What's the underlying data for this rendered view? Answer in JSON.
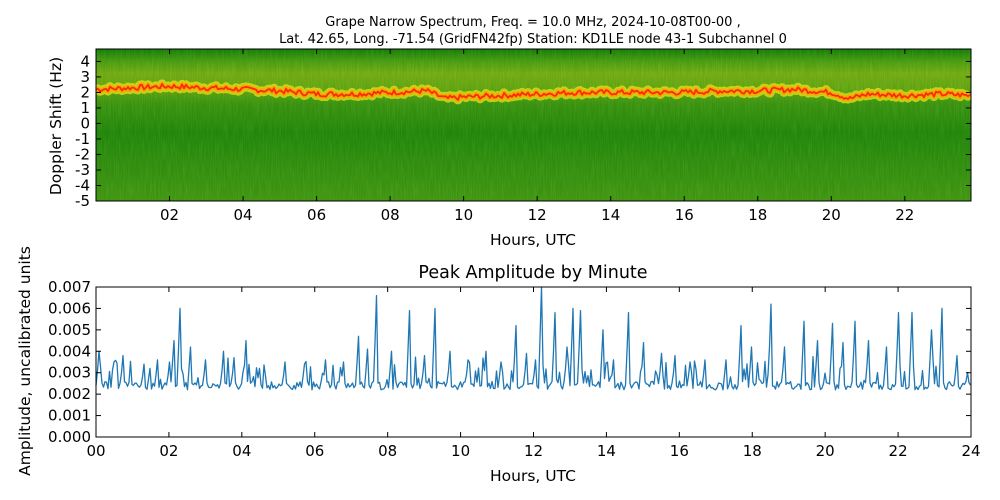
{
  "figure": {
    "title_line1": "Grape Narrow Spectrum, Freq. = 10.0 MHz, 2024-10-08T00-00 ,",
    "title_line2": "Lat.  42.65, Long. -71.54 (GridFN42fp) Station: KD1LE node 43-1 Subchannel 0"
  },
  "colors": {
    "background": "#ffffff",
    "spectrum_low": "#0e7d07",
    "spectrum_mid": "#7ec21a",
    "spectrum_high": "#e8e21c",
    "spectrum_peak": "#ff2a00",
    "amplitude_line": "#1f77b4",
    "axes": "#000000"
  },
  "chart_data": [
    {
      "type": "heatmap",
      "title": "",
      "xlabel": "Hours, UTC",
      "ylabel": "Doppler Shift (Hz)",
      "xlim": [
        0,
        23.8
      ],
      "ylim": [
        -5,
        4.8
      ],
      "x_ticks": [
        2,
        4,
        6,
        8,
        10,
        12,
        14,
        16,
        18,
        20,
        22
      ],
      "x_tick_labels": [
        "02",
        "04",
        "06",
        "08",
        "10",
        "12",
        "14",
        "16",
        "18",
        "20",
        "22"
      ],
      "y_ticks": [
        4,
        3,
        2,
        1,
        0,
        -1,
        -2,
        -3,
        -4,
        -5
      ],
      "y_tick_labels": [
        "4",
        "3",
        "2",
        "1",
        "0",
        "-1",
        "-2",
        "-3",
        "-4",
        "-5"
      ],
      "grid": false,
      "peak_trace": {
        "x": [
          0,
          1,
          2,
          3,
          4,
          5,
          6,
          7,
          8,
          9,
          9.5,
          10,
          11,
          12,
          13,
          14,
          15,
          16,
          17,
          18,
          19,
          20,
          20.5,
          21,
          22,
          23,
          23.8
        ],
        "y": [
          2.2,
          2.3,
          2.4,
          2.3,
          2.2,
          2.1,
          1.9,
          1.9,
          2.0,
          2.1,
          1.6,
          1.7,
          1.8,
          1.9,
          2.0,
          2.0,
          2.0,
          2.0,
          2.1,
          2.1,
          2.2,
          2.0,
          1.6,
          1.9,
          1.8,
          1.9,
          1.8
        ]
      }
    },
    {
      "type": "line",
      "title": "Peak Amplitude by Minute",
      "xlabel": "Hours, UTC",
      "ylabel": "Amplitude, uncalibrated units",
      "xlim": [
        0,
        24
      ],
      "ylim": [
        0,
        0.007
      ],
      "x_ticks": [
        0,
        2,
        4,
        6,
        8,
        10,
        12,
        14,
        16,
        18,
        20,
        22,
        24
      ],
      "x_tick_labels": [
        "00",
        "02",
        "04",
        "06",
        "08",
        "10",
        "12",
        "14",
        "16",
        "18",
        "20",
        "22",
        "24"
      ],
      "y_ticks": [
        0,
        0.001,
        0.002,
        0.003,
        0.004,
        0.005,
        0.006,
        0.007
      ],
      "y_tick_labels": [
        "0.000",
        "0.001",
        "0.002",
        "0.003",
        "0.004",
        "0.005",
        "0.006",
        "0.007"
      ],
      "grid": false,
      "baseline": 0.0022,
      "peaks": [
        {
          "x": 0.1,
          "y": 0.004
        },
        {
          "x": 0.5,
          "y": 0.0035
        },
        {
          "x": 0.75,
          "y": 0.0038
        },
        {
          "x": 1.3,
          "y": 0.0034
        },
        {
          "x": 1.5,
          "y": 0.0032
        },
        {
          "x": 1.7,
          "y": 0.0036
        },
        {
          "x": 2.0,
          "y": 0.0035
        },
        {
          "x": 2.15,
          "y": 0.0045
        },
        {
          "x": 2.3,
          "y": 0.006
        },
        {
          "x": 2.6,
          "y": 0.0042
        },
        {
          "x": 3.0,
          "y": 0.0036
        },
        {
          "x": 3.5,
          "y": 0.004
        },
        {
          "x": 3.8,
          "y": 0.0037
        },
        {
          "x": 4.1,
          "y": 0.0045
        },
        {
          "x": 4.5,
          "y": 0.0032
        },
        {
          "x": 5.2,
          "y": 0.0035
        },
        {
          "x": 5.7,
          "y": 0.0034
        },
        {
          "x": 6.3,
          "y": 0.0036
        },
        {
          "x": 6.8,
          "y": 0.0035
        },
        {
          "x": 7.2,
          "y": 0.0047
        },
        {
          "x": 7.45,
          "y": 0.0041
        },
        {
          "x": 7.7,
          "y": 0.0066
        },
        {
          "x": 8.1,
          "y": 0.004
        },
        {
          "x": 8.6,
          "y": 0.0059
        },
        {
          "x": 9.0,
          "y": 0.0038
        },
        {
          "x": 9.3,
          "y": 0.006
        },
        {
          "x": 9.7,
          "y": 0.004
        },
        {
          "x": 10.2,
          "y": 0.0036
        },
        {
          "x": 10.7,
          "y": 0.004
        },
        {
          "x": 11.1,
          "y": 0.0035
        },
        {
          "x": 11.5,
          "y": 0.0052
        },
        {
          "x": 11.8,
          "y": 0.0039
        },
        {
          "x": 12.05,
          "y": 0.0036
        },
        {
          "x": 12.2,
          "y": 0.007
        },
        {
          "x": 12.6,
          "y": 0.0058
        },
        {
          "x": 12.9,
          "y": 0.0042
        },
        {
          "x": 13.1,
          "y": 0.006
        },
        {
          "x": 13.3,
          "y": 0.0059
        },
        {
          "x": 13.9,
          "y": 0.005
        },
        {
          "x": 14.2,
          "y": 0.0036
        },
        {
          "x": 14.6,
          "y": 0.0058
        },
        {
          "x": 15.0,
          "y": 0.0044
        },
        {
          "x": 15.5,
          "y": 0.0039
        },
        {
          "x": 15.9,
          "y": 0.0038
        },
        {
          "x": 16.3,
          "y": 0.0035
        },
        {
          "x": 16.7,
          "y": 0.0036
        },
        {
          "x": 17.3,
          "y": 0.0036
        },
        {
          "x": 17.7,
          "y": 0.0052
        },
        {
          "x": 18.0,
          "y": 0.0042
        },
        {
          "x": 18.5,
          "y": 0.0062
        },
        {
          "x": 18.9,
          "y": 0.0042
        },
        {
          "x": 19.4,
          "y": 0.0054
        },
        {
          "x": 19.8,
          "y": 0.0045
        },
        {
          "x": 20.2,
          "y": 0.0053
        },
        {
          "x": 20.5,
          "y": 0.0044
        },
        {
          "x": 20.8,
          "y": 0.0054
        },
        {
          "x": 21.2,
          "y": 0.0045
        },
        {
          "x": 21.7,
          "y": 0.0042
        },
        {
          "x": 22.0,
          "y": 0.0058
        },
        {
          "x": 22.4,
          "y": 0.0058
        },
        {
          "x": 22.9,
          "y": 0.005
        },
        {
          "x": 23.2,
          "y": 0.006
        },
        {
          "x": 23.6,
          "y": 0.0038
        },
        {
          "x": 23.9,
          "y": 0.003
        }
      ]
    }
  ]
}
